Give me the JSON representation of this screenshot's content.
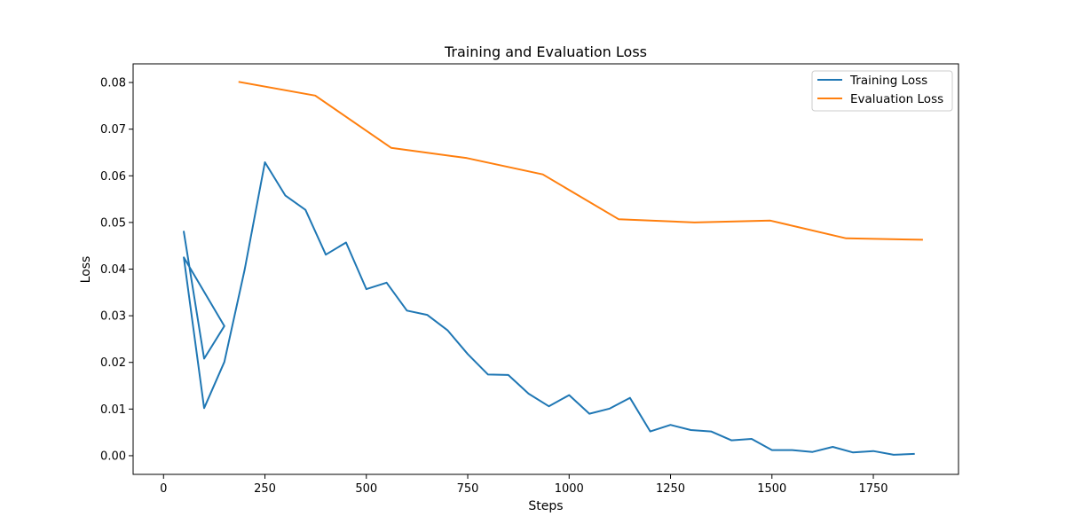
{
  "chart_data": {
    "type": "line",
    "title": "Training and Evaluation Loss",
    "xlabel": "Steps",
    "ylabel": "Loss",
    "xlim": [
      -75,
      1960
    ],
    "ylim": [
      -0.004,
      0.084
    ],
    "xticks": [
      0,
      250,
      500,
      750,
      1000,
      1250,
      1500,
      1750
    ],
    "xtick_labels": [
      "0",
      "250",
      "500",
      "750",
      "1000",
      "1250",
      "1500",
      "1750"
    ],
    "yticks": [
      0.0,
      0.01,
      0.02,
      0.03,
      0.04,
      0.05,
      0.06,
      0.07,
      0.08
    ],
    "ytick_labels": [
      "0.00",
      "0.01",
      "0.02",
      "0.03",
      "0.04",
      "0.05",
      "0.06",
      "0.07",
      "0.08"
    ],
    "grid": false,
    "legend_position": "top-right",
    "series": [
      {
        "name": "Training Loss",
        "color": "#1f77b4",
        "x": [
          50,
          100,
          150,
          50,
          100,
          150,
          200,
          250,
          300,
          350,
          400,
          450,
          500,
          550,
          600,
          650,
          700,
          750,
          800,
          850,
          900,
          950,
          1000,
          1050,
          1100,
          1150,
          1200,
          1250,
          1300,
          1350,
          1400,
          1450,
          1500,
          1550,
          1600,
          1650,
          1700,
          1750,
          1800,
          1850
        ],
        "y": [
          0.048,
          0.0208,
          0.0278,
          0.0425,
          0.0102,
          0.0201,
          0.0399,
          0.0629,
          0.0558,
          0.0527,
          0.0431,
          0.0457,
          0.0357,
          0.0371,
          0.0311,
          0.0302,
          0.0269,
          0.0218,
          0.0174,
          0.0173,
          0.0133,
          0.0106,
          0.013,
          0.009,
          0.0101,
          0.0124,
          0.0052,
          0.0066,
          0.0055,
          0.0052,
          0.0033,
          0.0036,
          0.0012,
          0.0012,
          0.0008,
          0.0019,
          0.0007,
          0.001,
          0.0002,
          0.0004
        ]
      },
      {
        "name": "Evaluation Loss",
        "color": "#ff7f0e",
        "x": [
          187,
          374,
          561,
          748,
          935,
          1122,
          1309,
          1496,
          1683,
          1870
        ],
        "y": [
          0.0801,
          0.0772,
          0.066,
          0.0638,
          0.0603,
          0.0507,
          0.05,
          0.0504,
          0.0466,
          0.0463
        ]
      }
    ]
  }
}
